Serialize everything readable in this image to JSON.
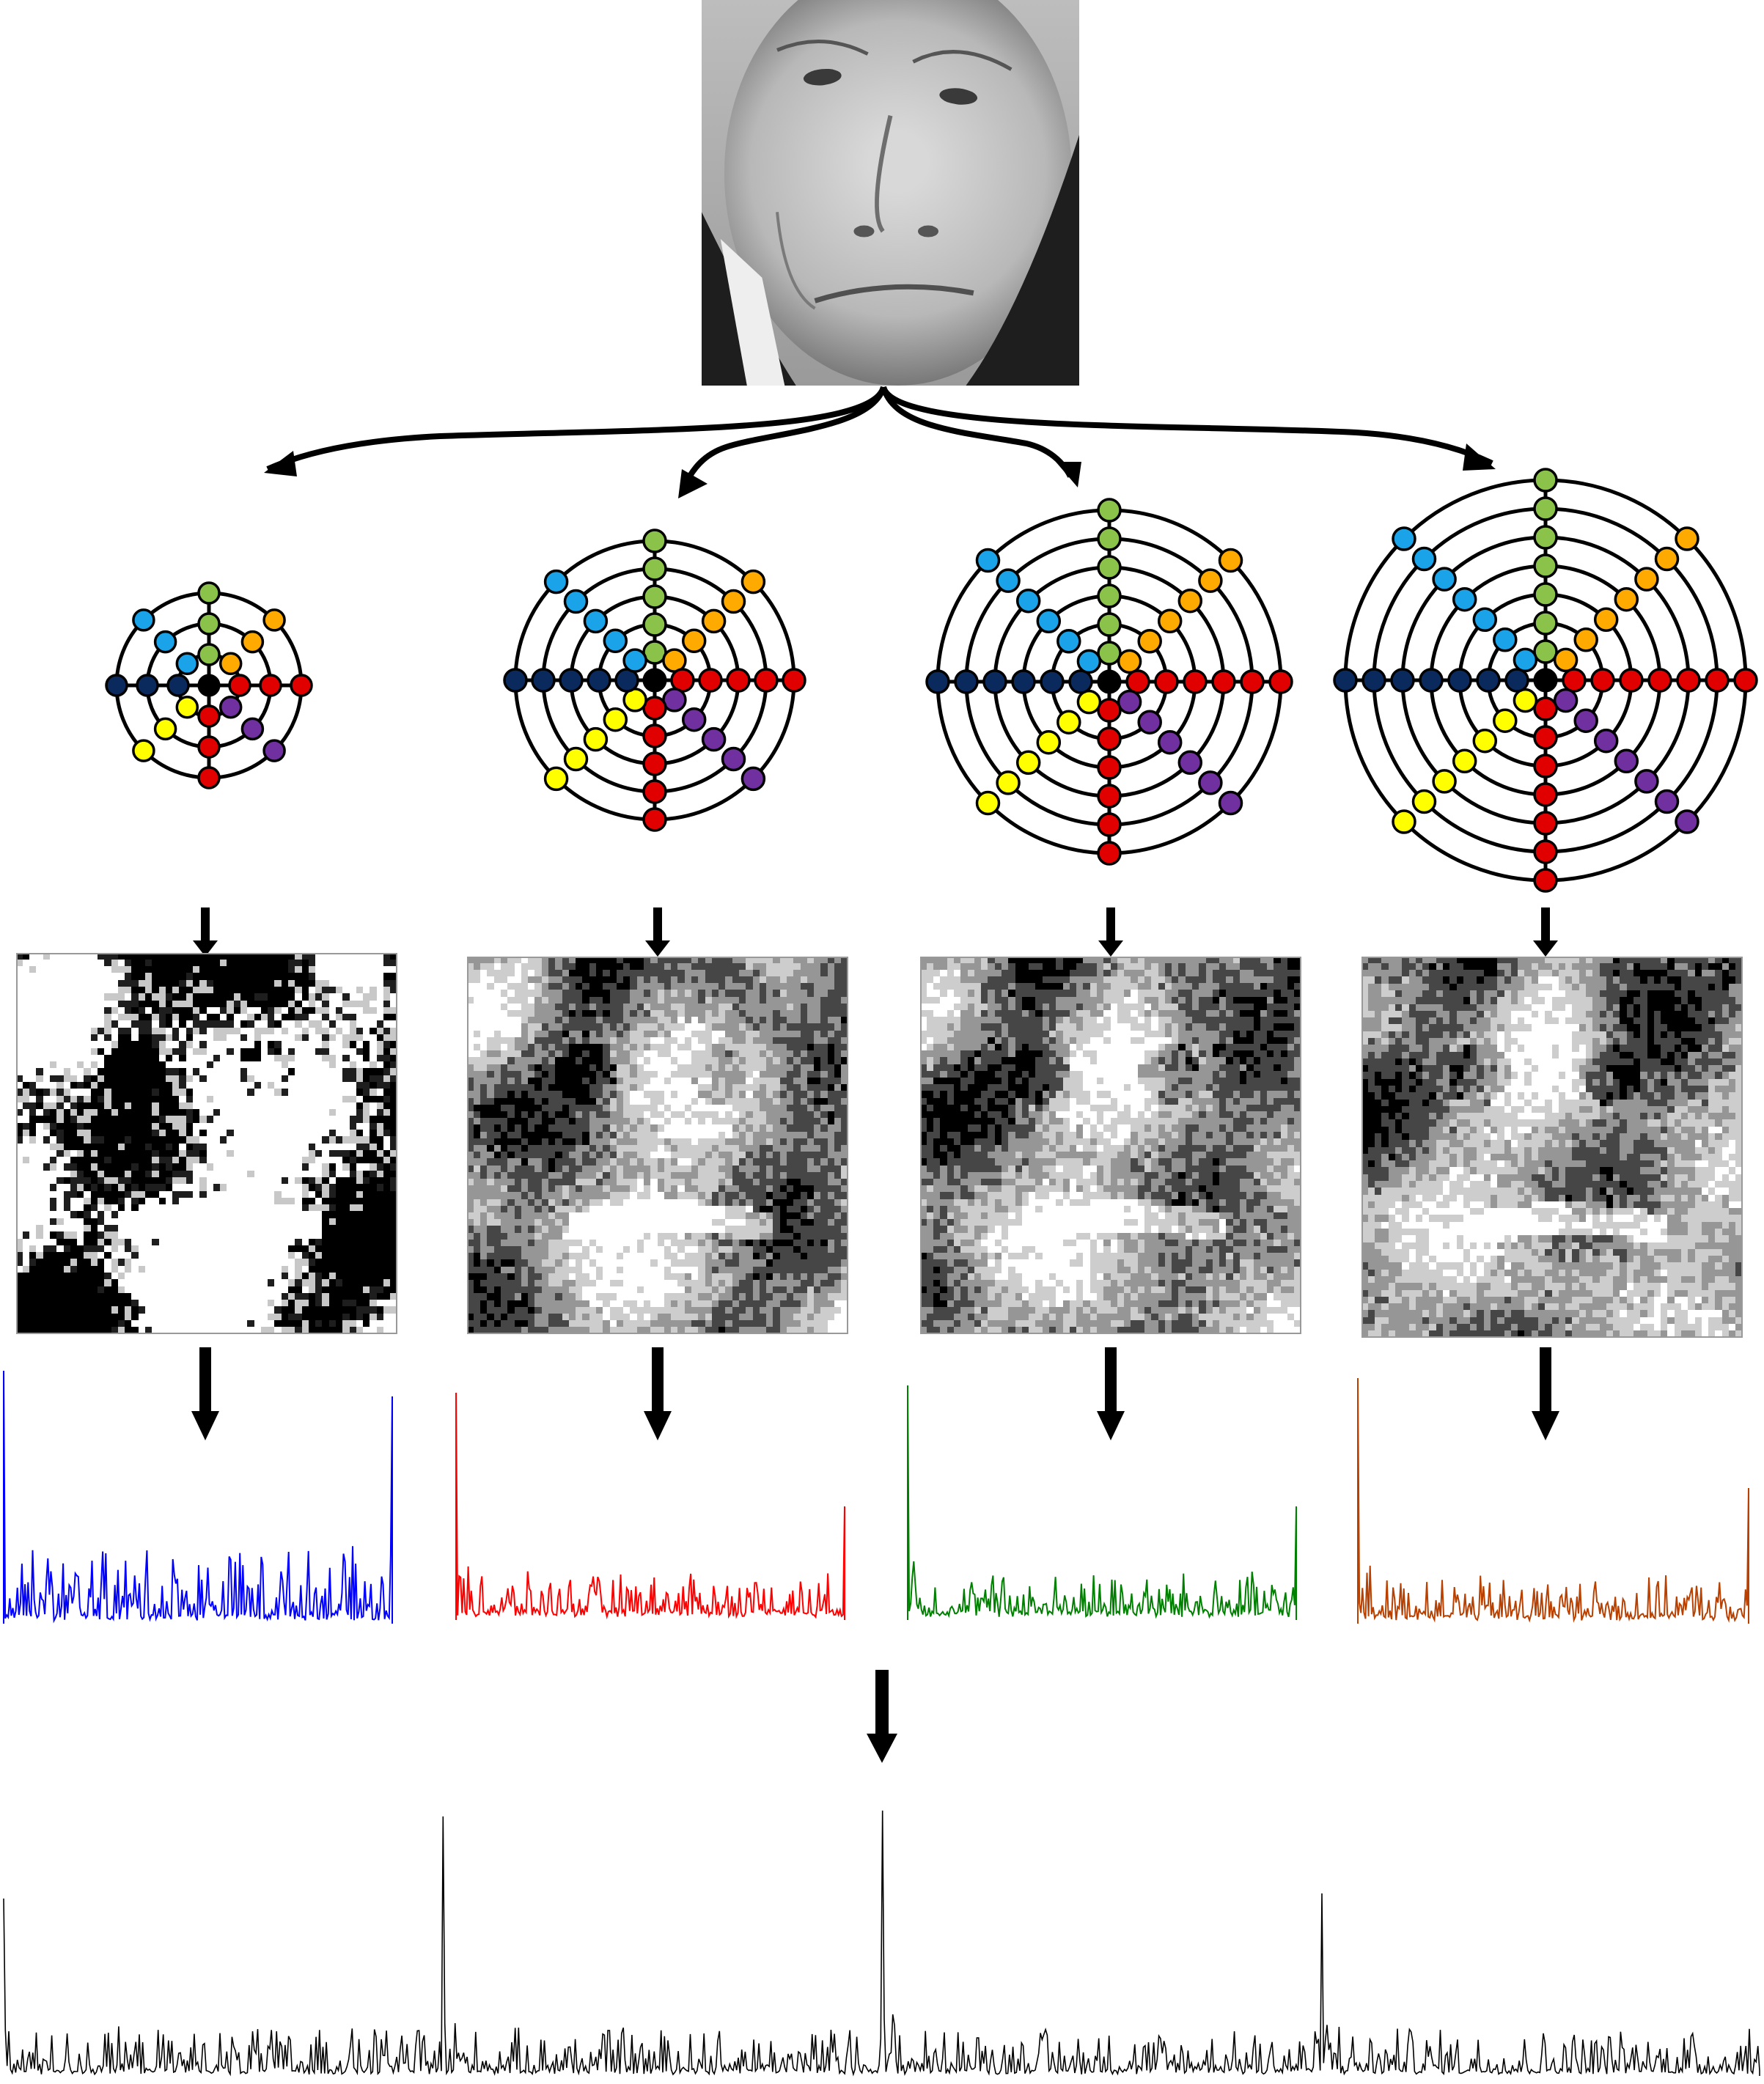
{
  "figure": {
    "description_free": true,
    "input": {
      "kind": "grayscale-face-photo"
    },
    "scales": [
      {
        "id": "scale-1",
        "rings": 3,
        "spokes": 8,
        "texture_style": "high-contrast-binary",
        "histogram_color": "#0000ff"
      },
      {
        "id": "scale-2",
        "rings": 5,
        "spokes": 8,
        "texture_style": "mid-gray",
        "histogram_color": "#ff0000"
      },
      {
        "id": "scale-3",
        "rings": 6,
        "spokes": 8,
        "texture_style": "mid-gray",
        "histogram_color": "#008000"
      },
      {
        "id": "scale-4",
        "rings": 7,
        "spokes": 8,
        "texture_style": "mid-gray",
        "histogram_color": "#b84000"
      }
    ],
    "concatenated_histogram": {
      "color": "#000000",
      "segments": 4
    },
    "node_colors": {
      "center": "#000000",
      "up": "#8bc34a",
      "up_right": "#ffaa00",
      "right": "#e00000",
      "down_right": "#7030a0",
      "down": "#e00000",
      "down_left": "#ffff00",
      "left": "#0a2a5e",
      "up_left": "#1aa3e8"
    },
    "arrow_color": "#000000",
    "stroke_color": "#000000"
  }
}
